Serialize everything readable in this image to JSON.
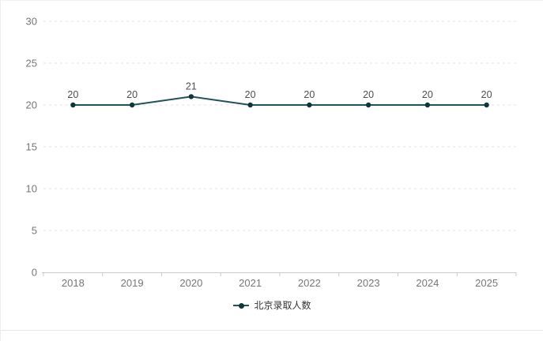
{
  "chart_data": {
    "type": "line",
    "title": "",
    "categories": [
      "2018",
      "2019",
      "2020",
      "2021",
      "2022",
      "2023",
      "2024",
      "2025"
    ],
    "series": [
      {
        "name": "北京录取人数",
        "values": [
          20,
          20,
          21,
          20,
          20,
          20,
          20,
          20
        ]
      }
    ],
    "xlabel": "",
    "ylabel": "",
    "ylim": [
      0,
      30
    ],
    "yticks": [
      0,
      5,
      10,
      15,
      20,
      25,
      30
    ],
    "grid": true,
    "grid_style": "dashed",
    "show_point_labels": true,
    "point_labels": [
      "20",
      "20",
      "21",
      "20",
      "20",
      "20",
      "20",
      "20"
    ],
    "legend_position": "bottom",
    "colors": {
      "line": "#215456",
      "point": "#0f3638",
      "point_label": "#4d4d4d",
      "axis_label": "#767676",
      "grid_line": "#e3e3e3",
      "axis_line": "#c9c9c9",
      "legend_text": "#333333"
    }
  }
}
